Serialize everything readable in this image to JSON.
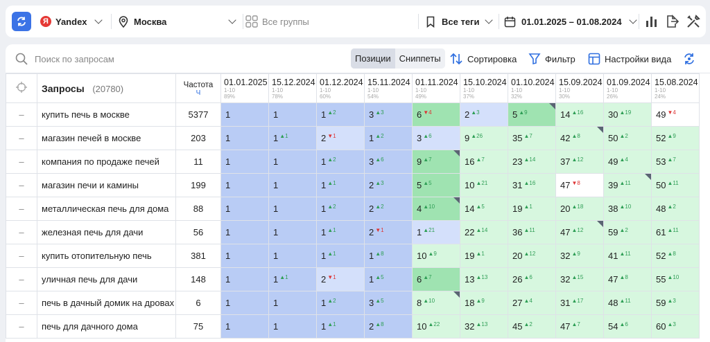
{
  "topbar": {
    "engine": "Yandex",
    "engine_badge": "Я",
    "region": "Москва",
    "groups": "Все группы",
    "tags": "Все теги",
    "date_range": "01.01.2025 – 01.08.2024"
  },
  "toolbar": {
    "search_placeholder": "Поиск по запросам",
    "tab_positions": "Позиции",
    "tab_snippets": "Сниппеты",
    "sort_label": "Сортировка",
    "filter_label": "Фильтр",
    "view_settings_label": "Настройки вида"
  },
  "table": {
    "queries_header": "Запросы",
    "queries_count": "(20780)",
    "freq_header": "Частота",
    "freq_sub": "Ч",
    "dates": [
      {
        "date": "01.01.2025",
        "range": "1-10",
        "pct": "89%"
      },
      {
        "date": "15.12.2024",
        "range": "1-10",
        "pct": "78%"
      },
      {
        "date": "01.12.2024",
        "range": "1-10",
        "pct": "60%"
      },
      {
        "date": "15.11.2024",
        "range": "1-10",
        "pct": "54%"
      },
      {
        "date": "01.11.2024",
        "range": "1-10",
        "pct": "49%"
      },
      {
        "date": "15.10.2024",
        "range": "1-10",
        "pct": "37%"
      },
      {
        "date": "01.10.2024",
        "range": "1-10",
        "pct": "32%"
      },
      {
        "date": "15.09.2024",
        "range": "1-10",
        "pct": "30%"
      },
      {
        "date": "01.09.2024",
        "range": "1-10",
        "pct": "26%"
      },
      {
        "date": "15.08.2024",
        "range": "1-10",
        "pct": "24%"
      }
    ],
    "rows": [
      {
        "dash": "–",
        "query": "купить печь в москве",
        "freq": "5377",
        "cells": [
          {
            "v": "1",
            "d": "",
            "c": "blue"
          },
          {
            "v": "1",
            "d": "",
            "c": "blue"
          },
          {
            "v": "1",
            "d": "2",
            "dir": "up",
            "c": "blue"
          },
          {
            "v": "3",
            "d": "3",
            "dir": "up",
            "c": "blue"
          },
          {
            "v": "6",
            "d": "4",
            "dir": "dn",
            "c": "green"
          },
          {
            "v": "2",
            "d": "3",
            "dir": "up",
            "c": "lblue"
          },
          {
            "v": "5",
            "d": "9",
            "dir": "up",
            "c": "green",
            "corner": true
          },
          {
            "v": "14",
            "d": "16",
            "dir": "up",
            "c": "lgreen"
          },
          {
            "v": "30",
            "d": "19",
            "dir": "up",
            "c": "lgreen"
          },
          {
            "v": "49",
            "d": "4",
            "dir": "dn",
            "c": "white"
          }
        ]
      },
      {
        "dash": "–",
        "query": "магазин печей в москве",
        "freq": "203",
        "cells": [
          {
            "v": "1",
            "d": "",
            "c": "blue"
          },
          {
            "v": "1",
            "d": "1",
            "dir": "up",
            "c": "blue"
          },
          {
            "v": "2",
            "d": "1",
            "dir": "dn",
            "c": "lblue"
          },
          {
            "v": "1",
            "d": "2",
            "dir": "up",
            "c": "blue"
          },
          {
            "v": "3",
            "d": "6",
            "dir": "up",
            "c": "lblue"
          },
          {
            "v": "9",
            "d": "26",
            "dir": "up",
            "c": "lgreen"
          },
          {
            "v": "35",
            "d": "7",
            "dir": "up",
            "c": "lgreen"
          },
          {
            "v": "42",
            "d": "8",
            "dir": "up",
            "c": "lgreen",
            "corner": true
          },
          {
            "v": "50",
            "d": "2",
            "dir": "up",
            "c": "lgreen"
          },
          {
            "v": "52",
            "d": "9",
            "dir": "up",
            "c": "lgreen"
          }
        ]
      },
      {
        "dash": "–",
        "query": "компания по продаже печей",
        "freq": "11",
        "cells": [
          {
            "v": "1",
            "d": "",
            "c": "blue"
          },
          {
            "v": "1",
            "d": "",
            "c": "blue"
          },
          {
            "v": "1",
            "d": "2",
            "dir": "up",
            "c": "blue"
          },
          {
            "v": "3",
            "d": "6",
            "dir": "up",
            "c": "blue"
          },
          {
            "v": "9",
            "d": "7",
            "dir": "up",
            "c": "green",
            "corner": true
          },
          {
            "v": "16",
            "d": "7",
            "dir": "up",
            "c": "lgreen"
          },
          {
            "v": "23",
            "d": "14",
            "dir": "up",
            "c": "lgreen"
          },
          {
            "v": "37",
            "d": "12",
            "dir": "up",
            "c": "lgreen"
          },
          {
            "v": "49",
            "d": "4",
            "dir": "up",
            "c": "lgreen"
          },
          {
            "v": "53",
            "d": "7",
            "dir": "up",
            "c": "lgreen"
          }
        ]
      },
      {
        "dash": "–",
        "query": "магазин печи и камины",
        "freq": "199",
        "cells": [
          {
            "v": "1",
            "d": "",
            "c": "blue"
          },
          {
            "v": "1",
            "d": "",
            "c": "blue"
          },
          {
            "v": "1",
            "d": "1",
            "dir": "up",
            "c": "blue"
          },
          {
            "v": "2",
            "d": "3",
            "dir": "up",
            "c": "blue"
          },
          {
            "v": "5",
            "d": "5",
            "dir": "up",
            "c": "green"
          },
          {
            "v": "10",
            "d": "21",
            "dir": "up",
            "c": "lgreen"
          },
          {
            "v": "31",
            "d": "16",
            "dir": "up",
            "c": "lgreen"
          },
          {
            "v": "47",
            "d": "8",
            "dir": "dn",
            "c": "white"
          },
          {
            "v": "39",
            "d": "11",
            "dir": "up",
            "c": "lgreen",
            "corner": true
          },
          {
            "v": "50",
            "d": "11",
            "dir": "up",
            "c": "lgreen"
          }
        ]
      },
      {
        "dash": "–",
        "query": "металлическая печь для дома",
        "freq": "88",
        "cells": [
          {
            "v": "1",
            "d": "",
            "c": "blue"
          },
          {
            "v": "1",
            "d": "",
            "c": "blue"
          },
          {
            "v": "1",
            "d": "2",
            "dir": "up",
            "c": "blue"
          },
          {
            "v": "2",
            "d": "2",
            "dir": "up",
            "c": "blue"
          },
          {
            "v": "4",
            "d": "10",
            "dir": "up",
            "c": "green",
            "corner": true
          },
          {
            "v": "14",
            "d": "5",
            "dir": "up",
            "c": "lgreen"
          },
          {
            "v": "19",
            "d": "1",
            "dir": "up",
            "c": "lgreen"
          },
          {
            "v": "20",
            "d": "18",
            "dir": "up",
            "c": "lgreen"
          },
          {
            "v": "38",
            "d": "10",
            "dir": "up",
            "c": "lgreen"
          },
          {
            "v": "48",
            "d": "2",
            "dir": "up",
            "c": "lgreen"
          }
        ]
      },
      {
        "dash": "–",
        "query": "железная печь для дачи",
        "freq": "56",
        "cells": [
          {
            "v": "1",
            "d": "",
            "c": "blue"
          },
          {
            "v": "1",
            "d": "",
            "c": "blue"
          },
          {
            "v": "1",
            "d": "1",
            "dir": "up",
            "c": "blue"
          },
          {
            "v": "2",
            "d": "1",
            "dir": "dn",
            "c": "blue"
          },
          {
            "v": "1",
            "d": "21",
            "dir": "up",
            "c": "lblue"
          },
          {
            "v": "22",
            "d": "14",
            "dir": "up",
            "c": "lgreen"
          },
          {
            "v": "36",
            "d": "11",
            "dir": "up",
            "c": "lgreen"
          },
          {
            "v": "47",
            "d": "12",
            "dir": "up",
            "c": "lgreen",
            "corner": true
          },
          {
            "v": "59",
            "d": "2",
            "dir": "up",
            "c": "lgreen"
          },
          {
            "v": "61",
            "d": "11",
            "dir": "up",
            "c": "lgreen"
          }
        ]
      },
      {
        "dash": "–",
        "query": "купить отопительную печь",
        "freq": "381",
        "cells": [
          {
            "v": "1",
            "d": "",
            "c": "blue"
          },
          {
            "v": "1",
            "d": "",
            "c": "blue"
          },
          {
            "v": "1",
            "d": "1",
            "dir": "up",
            "c": "blue"
          },
          {
            "v": "1",
            "d": "8",
            "dir": "up",
            "c": "blue"
          },
          {
            "v": "10",
            "d": "9",
            "dir": "up",
            "c": "lgreen"
          },
          {
            "v": "19",
            "d": "1",
            "dir": "up",
            "c": "lgreen"
          },
          {
            "v": "20",
            "d": "12",
            "dir": "up",
            "c": "lgreen"
          },
          {
            "v": "32",
            "d": "9",
            "dir": "up",
            "c": "lgreen"
          },
          {
            "v": "41",
            "d": "11",
            "dir": "up",
            "c": "lgreen"
          },
          {
            "v": "52",
            "d": "8",
            "dir": "up",
            "c": "lgreen"
          }
        ]
      },
      {
        "dash": "–",
        "query": "уличная печь для дачи",
        "freq": "148",
        "cells": [
          {
            "v": "1",
            "d": "",
            "c": "blue"
          },
          {
            "v": "1",
            "d": "1",
            "dir": "up",
            "c": "blue"
          },
          {
            "v": "2",
            "d": "1",
            "dir": "dn",
            "c": "lblue"
          },
          {
            "v": "1",
            "d": "5",
            "dir": "up",
            "c": "blue"
          },
          {
            "v": "6",
            "d": "7",
            "dir": "up",
            "c": "green"
          },
          {
            "v": "13",
            "d": "13",
            "dir": "up",
            "c": "lgreen"
          },
          {
            "v": "26",
            "d": "6",
            "dir": "up",
            "c": "lgreen"
          },
          {
            "v": "32",
            "d": "15",
            "dir": "up",
            "c": "lgreen"
          },
          {
            "v": "47",
            "d": "8",
            "dir": "up",
            "c": "lgreen"
          },
          {
            "v": "55",
            "d": "10",
            "dir": "up",
            "c": "lgreen"
          }
        ]
      },
      {
        "dash": "–",
        "query": "печь в дачный домик на дровах",
        "freq": "6",
        "cells": [
          {
            "v": "1",
            "d": "",
            "c": "blue"
          },
          {
            "v": "1",
            "d": "",
            "c": "blue"
          },
          {
            "v": "1",
            "d": "2",
            "dir": "up",
            "c": "blue"
          },
          {
            "v": "3",
            "d": "5",
            "dir": "up",
            "c": "blue"
          },
          {
            "v": "8",
            "d": "10",
            "dir": "up",
            "c": "lgreen",
            "corner": true
          },
          {
            "v": "18",
            "d": "9",
            "dir": "up",
            "c": "lgreen"
          },
          {
            "v": "27",
            "d": "4",
            "dir": "up",
            "c": "lgreen"
          },
          {
            "v": "31",
            "d": "17",
            "dir": "up",
            "c": "lgreen"
          },
          {
            "v": "48",
            "d": "11",
            "dir": "up",
            "c": "lgreen"
          },
          {
            "v": "59",
            "d": "3",
            "dir": "up",
            "c": "lgreen"
          }
        ]
      },
      {
        "dash": "–",
        "query": "печь для дачного дома",
        "freq": "75",
        "cells": [
          {
            "v": "1",
            "d": "",
            "c": "blue"
          },
          {
            "v": "1",
            "d": "",
            "c": "blue"
          },
          {
            "v": "1",
            "d": "1",
            "dir": "up",
            "c": "blue"
          },
          {
            "v": "2",
            "d": "8",
            "dir": "up",
            "c": "blue"
          },
          {
            "v": "10",
            "d": "22",
            "dir": "up",
            "c": "lgreen"
          },
          {
            "v": "32",
            "d": "13",
            "dir": "up",
            "c": "lgreen"
          },
          {
            "v": "45",
            "d": "2",
            "dir": "up",
            "c": "lgreen"
          },
          {
            "v": "47",
            "d": "7",
            "dir": "up",
            "c": "lgreen"
          },
          {
            "v": "54",
            "d": "6",
            "dir": "up",
            "c": "lgreen"
          },
          {
            "v": "60",
            "d": "3",
            "dir": "up",
            "c": "lgreen"
          }
        ]
      }
    ]
  }
}
